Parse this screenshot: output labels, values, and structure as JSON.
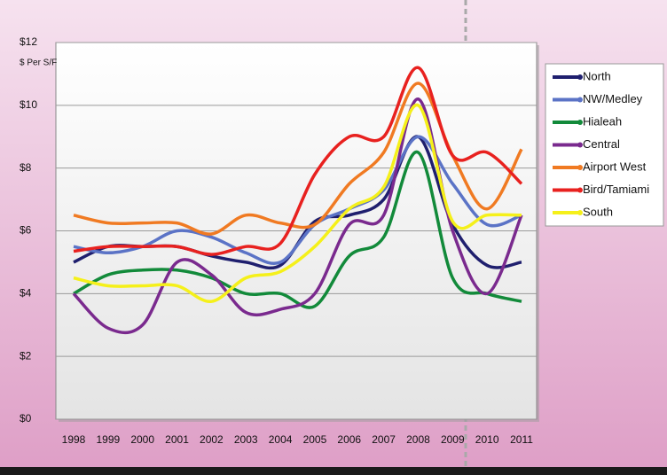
{
  "chart_data": {
    "type": "line",
    "y_label": "$ Per S/F",
    "categories": [
      "1998",
      "1999",
      "2000",
      "2001",
      "2002",
      "2003",
      "2004",
      "2005",
      "2006",
      "2007",
      "2008",
      "2009",
      "2010",
      "2011"
    ],
    "ylim": [
      0,
      12
    ],
    "yticks": [
      {
        "value": 0,
        "label": "$0"
      },
      {
        "value": 2,
        "label": "$2"
      },
      {
        "value": 4,
        "label": "$4"
      },
      {
        "value": 6,
        "label": "$6"
      },
      {
        "value": 8,
        "label": "$8"
      },
      {
        "value": 10,
        "label": "$10"
      },
      {
        "value": 12,
        "label": "$12"
      }
    ],
    "grid": true,
    "legend": "right",
    "series": [
      {
        "name": "North",
        "color": "#1f1f6e",
        "values": [
          5.0,
          5.5,
          5.5,
          5.5,
          5.2,
          5.0,
          4.9,
          6.3,
          6.5,
          7.0,
          9.0,
          6.2,
          4.9,
          5.0
        ]
      },
      {
        "name": "NW/Medley",
        "color": "#5b73c6",
        "values": [
          5.5,
          5.3,
          5.5,
          6.0,
          5.8,
          5.3,
          5.0,
          6.2,
          6.7,
          7.3,
          9.0,
          7.5,
          6.2,
          6.5
        ]
      },
      {
        "name": "Hialeah",
        "color": "#128a3a",
        "values": [
          4.0,
          4.6,
          4.75,
          4.75,
          4.5,
          4.0,
          4.0,
          3.6,
          5.2,
          5.8,
          8.5,
          4.5,
          4.0,
          3.75
        ]
      },
      {
        "name": "Central",
        "color": "#7a2a8e",
        "values": [
          4.0,
          2.9,
          3.0,
          5.0,
          4.6,
          3.4,
          3.5,
          4.0,
          6.2,
          6.5,
          10.2,
          6.0,
          4.0,
          6.5
        ]
      },
      {
        "name": "Airport West",
        "color": "#f07a22",
        "values": [
          6.5,
          6.25,
          6.25,
          6.25,
          5.9,
          6.5,
          6.25,
          6.2,
          7.5,
          8.5,
          10.7,
          8.4,
          6.7,
          8.6
        ]
      },
      {
        "name": "Bird/Tamiami",
        "color": "#e8211f",
        "values": [
          5.35,
          5.5,
          5.5,
          5.5,
          5.25,
          5.5,
          5.6,
          7.8,
          9.0,
          9.0,
          11.2,
          8.4,
          8.5,
          7.5
        ]
      },
      {
        "name": "South",
        "color": "#f5f01a",
        "values": [
          4.5,
          4.25,
          4.25,
          4.25,
          3.75,
          4.5,
          4.7,
          5.5,
          6.7,
          7.4,
          10.0,
          6.3,
          6.5,
          6.5
        ]
      }
    ]
  }
}
